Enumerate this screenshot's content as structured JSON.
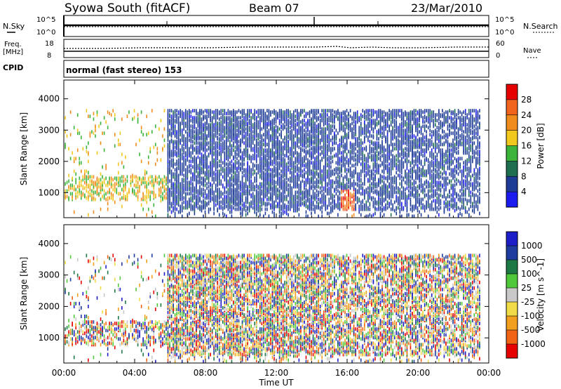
{
  "header": {
    "title": "Syowa South (fitACF)",
    "beam": "Beam 07",
    "date": "23/Mar/2010"
  },
  "top_panel": {
    "left_label": "N.Sky",
    "left_ticks": [
      "10^5",
      "10^0"
    ],
    "right_label": "N.Search",
    "right_ticks": [
      "10^5",
      "10^0"
    ]
  },
  "freq_panel": {
    "left_label_1": "Freq.",
    "left_label_2": "[MHz]",
    "left_ticks": [
      "18",
      "8"
    ],
    "right_label": "Nave",
    "right_ticks": [
      "60",
      "0"
    ]
  },
  "cpid": {
    "label": "CPID",
    "mode_text": "normal (fast stereo) 153"
  },
  "colors": {
    "power_scale": [
      "#1c1cf0",
      "#1e3c96",
      "#1e6e50",
      "#3cb43c",
      "#f0c81e",
      "#f08c1e",
      "#f0641e",
      "#e60000"
    ],
    "velocity_scale": [
      "#1e1ec8",
      "#1e3ca0",
      "#1e7846",
      "#50c83c",
      "#c8c8c8",
      "#f0dc46",
      "#f0a01e",
      "#f06414",
      "#e60000"
    ]
  },
  "chart_data": [
    {
      "type": "heatmap",
      "name": "power",
      "ylabel": "Slant Range [km]",
      "yticks": [
        "1000",
        "2000",
        "3000",
        "4000"
      ],
      "ylim": [
        200,
        4600
      ],
      "xlim": [
        "00:00",
        "24:00"
      ],
      "colorbar": {
        "label": "Power [dB]",
        "ticks": [
          "4",
          "8",
          "12",
          "16",
          "20",
          "24",
          "28"
        ],
        "range": [
          0,
          32
        ]
      }
    },
    {
      "type": "heatmap",
      "name": "velocity",
      "ylabel": "Slant Range [km]",
      "yticks": [
        "1000",
        "2000",
        "3000",
        "4000"
      ],
      "ylim": [
        200,
        4600
      ],
      "xlim": [
        "00:00",
        "24:00"
      ],
      "xlabel": "Time UT",
      "xticks": [
        "00:00",
        "04:00",
        "08:00",
        "12:00",
        "16:00",
        "20:00",
        "00:00"
      ],
      "colorbar": {
        "label": "Velocity [m s^-1]",
        "ticks": [
          "1000",
          "500",
          "100",
          "25",
          "-25",
          "-100",
          "-500",
          "-1000"
        ]
      }
    }
  ]
}
